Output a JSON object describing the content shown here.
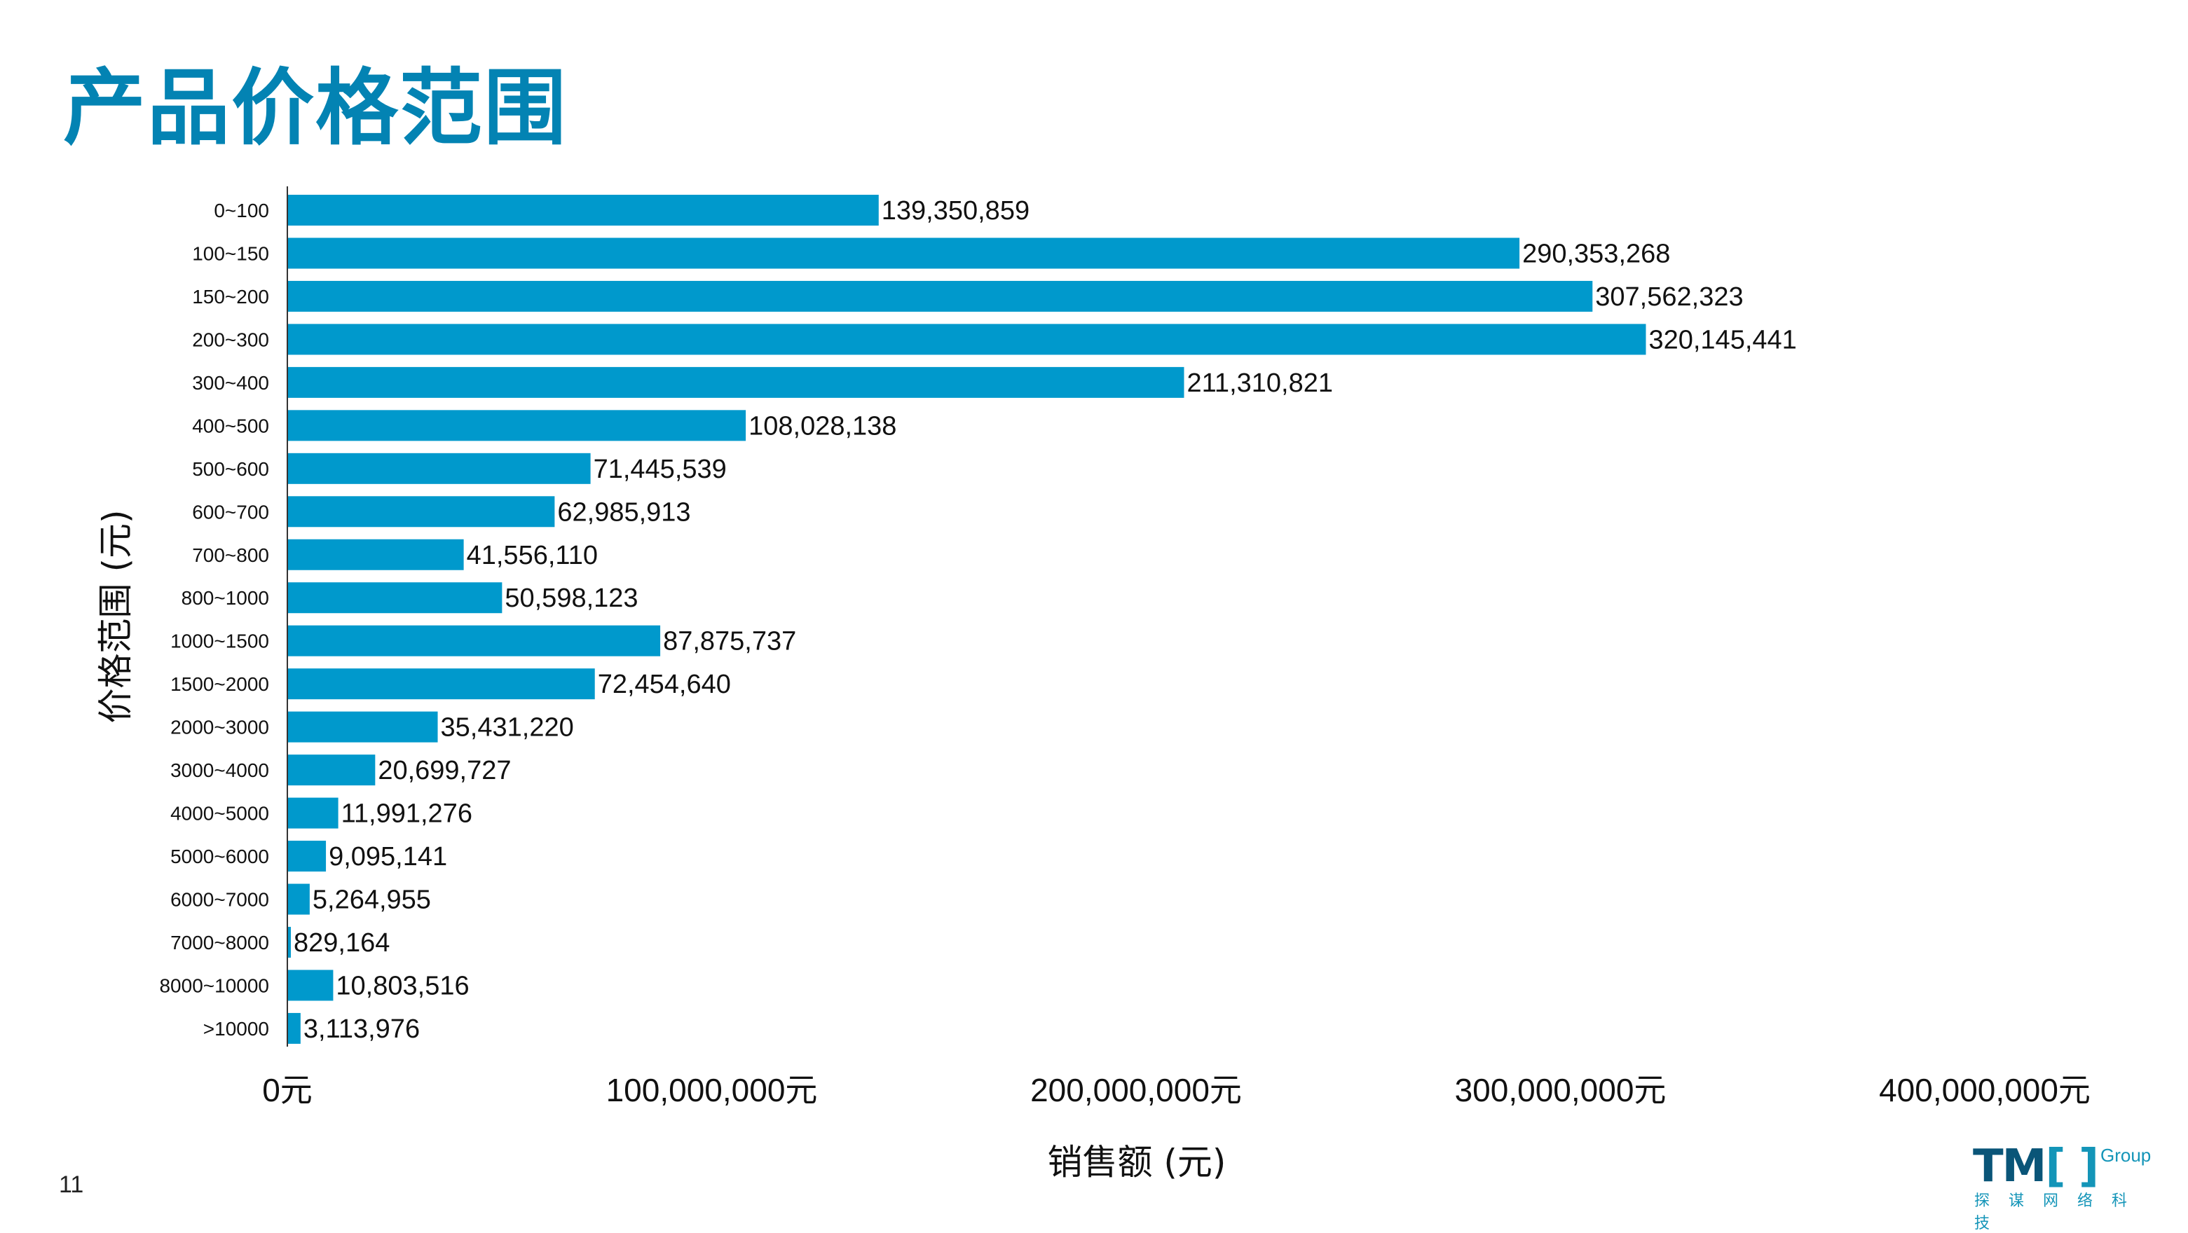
{
  "title": "产品价格范围",
  "page_number": "11",
  "logo": {
    "mark": "TMO",
    "sub": "Group",
    "cn": "探谋网络科技"
  },
  "colors": {
    "bar": "#0099cc",
    "title": "#0383b3",
    "text": "#111111"
  },
  "chart_data": {
    "type": "bar",
    "orientation": "horizontal",
    "title": "产品价格范围",
    "xlabel": "销售额 (元)",
    "ylabel": "价格范围 (元)",
    "xlim": [
      0,
      400000000
    ],
    "xticks": [
      0,
      100000000,
      200000000,
      300000000,
      400000000
    ],
    "xtick_labels": [
      "0元",
      "100,000,000元",
      "200,000,000元",
      "300,000,000元",
      "400,000,000元"
    ],
    "grid": false,
    "categories": [
      "0~100",
      "100~150",
      "150~200",
      "200~300",
      "300~400",
      "400~500",
      "500~600",
      "600~700",
      "700~800",
      "800~1000",
      "1000~1500",
      "1500~2000",
      "2000~3000",
      "3000~4000",
      "4000~5000",
      "5000~6000",
      "6000~7000",
      "7000~8000",
      "8000~10000",
      ">10000"
    ],
    "values": [
      139350859,
      290353268,
      307562323,
      320145441,
      211310821,
      108028138,
      71445539,
      62985913,
      41556110,
      50598123,
      87875737,
      72454640,
      35431220,
      20699727,
      11991276,
      9095141,
      5264955,
      829164,
      10803516,
      3113976
    ],
    "data_labels": [
      "139,350,859",
      "290,353,268",
      "307,562,323",
      "320,145,441",
      "211,310,821",
      "108,028,138",
      "71,445,539",
      "62,985,913",
      "41,556,110",
      "50,598,123",
      "87,875,737",
      "72,454,640",
      "35,431,220",
      "20,699,727",
      "11,991,276",
      "9,095,141",
      "5,264,955",
      "829,164",
      "10,803,516",
      "3,113,976"
    ]
  }
}
